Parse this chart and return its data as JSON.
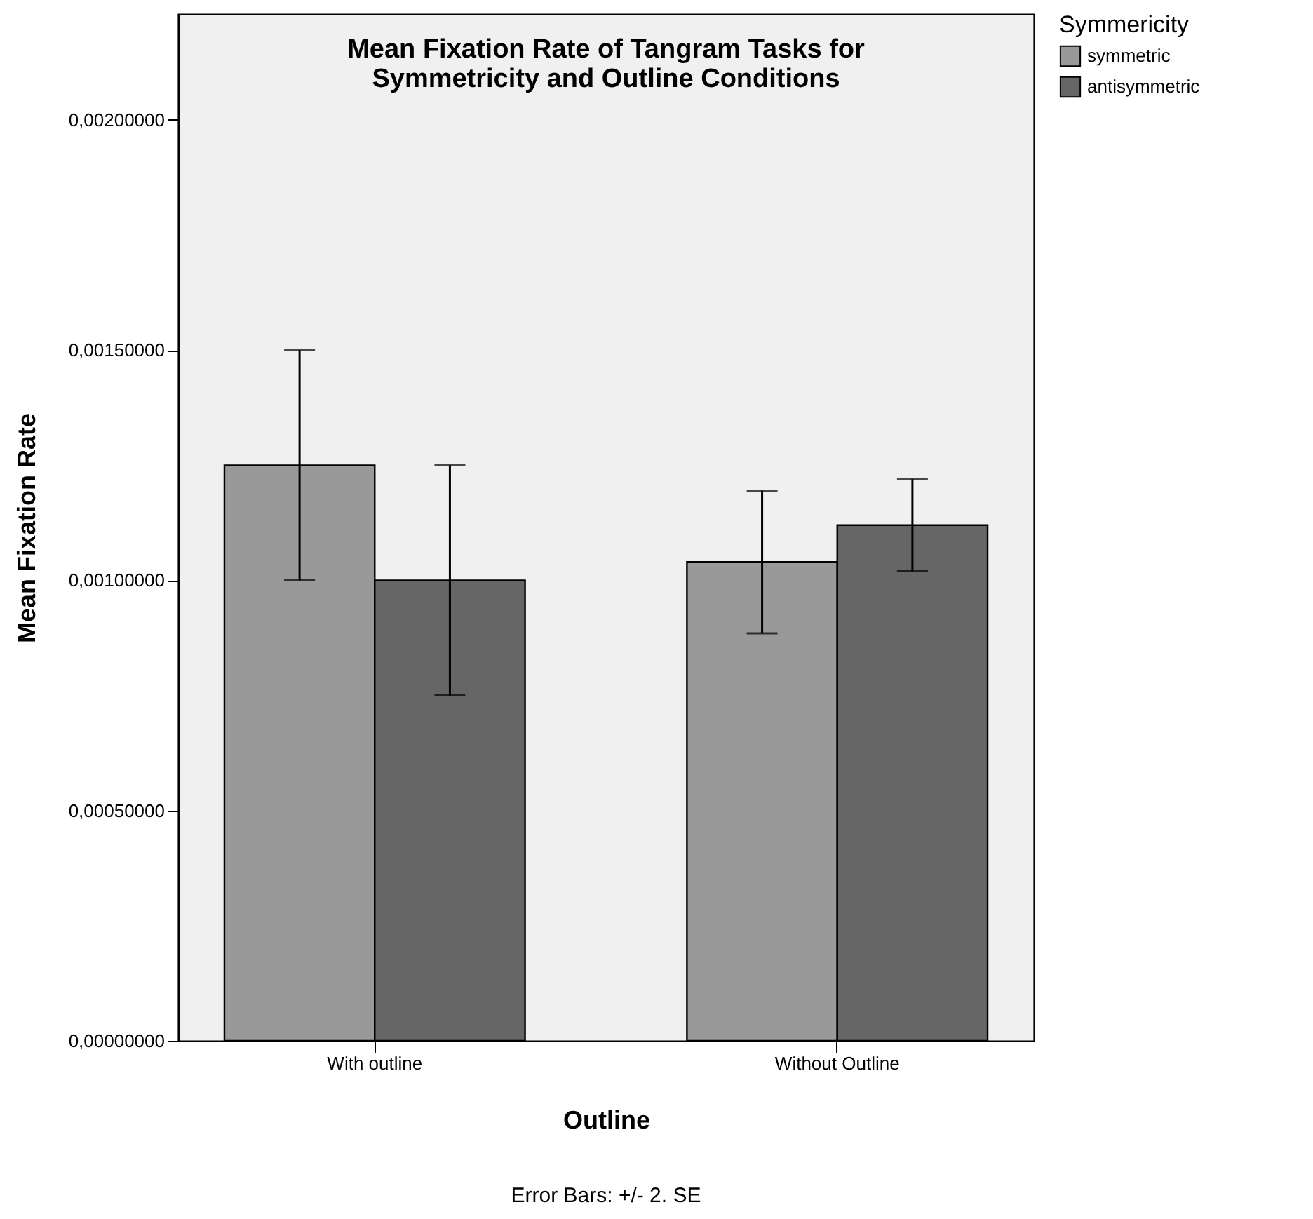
{
  "chart_data": {
    "type": "bar",
    "title": "Mean Fixation Rate of Tangram Tasks for\nSymmetricity and Outline Conditions",
    "xlabel": "Outline",
    "ylabel": "Mean Fixation Rate",
    "legend_title": "Symmericity",
    "categories": [
      "With outline",
      "Without Outline"
    ],
    "series": [
      {
        "name": "symmetric",
        "color": "#999999",
        "values": [
          0.00125,
          0.00104
        ],
        "errors": [
          0.00025,
          0.000155
        ]
      },
      {
        "name": "antisymmetric",
        "color": "#666666",
        "values": [
          0.001,
          0.00112
        ],
        "errors": [
          0.00025,
          0.0001
        ]
      }
    ],
    "ylim": [
      0,
      0.00223
    ],
    "yticks": [
      {
        "value": 0,
        "label": "0,00000000"
      },
      {
        "value": 0.0005,
        "label": "0,00050000"
      },
      {
        "value": 0.001,
        "label": "0,00100000"
      },
      {
        "value": 0.0015,
        "label": "0,00150000"
      },
      {
        "value": 0.002,
        "label": "0,00200000"
      }
    ],
    "grid": false,
    "legend": "right",
    "annotations": [
      "Error Bars: +/- 2. SE"
    ]
  }
}
